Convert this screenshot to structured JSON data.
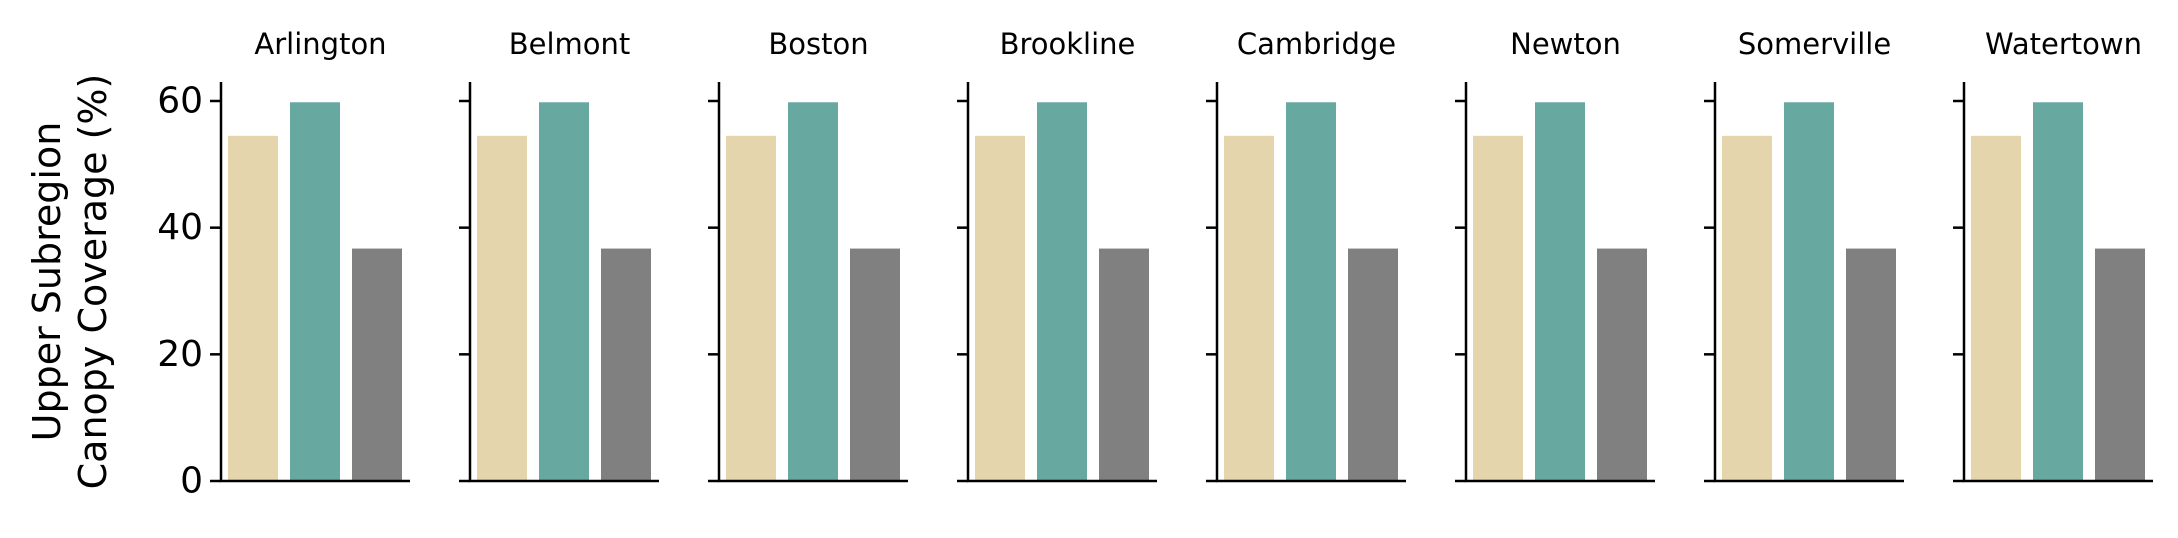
{
  "chart_data": {
    "type": "bar",
    "layout": "small-multiples",
    "ylabel_lines": [
      "Upper Subregion",
      "Canopy Coverage (%)"
    ],
    "ylim": [
      0,
      63
    ],
    "yticks": [
      "0",
      "20",
      "40",
      "60"
    ],
    "grid": false,
    "legend": "none",
    "bar_colors": [
      "#e4d5ac",
      "#67a8a0",
      "#808080"
    ],
    "panels": [
      {
        "title": "Arlington",
        "values": [
          54.5,
          59.8,
          36.7
        ]
      },
      {
        "title": "Belmont",
        "values": [
          54.5,
          59.8,
          36.7
        ]
      },
      {
        "title": "Boston",
        "values": [
          54.5,
          59.8,
          36.7
        ]
      },
      {
        "title": "Brookline",
        "values": [
          54.5,
          59.8,
          36.7
        ]
      },
      {
        "title": "Cambridge",
        "values": [
          54.5,
          59.8,
          36.7
        ]
      },
      {
        "title": "Newton",
        "values": [
          54.5,
          59.8,
          36.7
        ]
      },
      {
        "title": "Somerville",
        "values": [
          54.5,
          59.8,
          36.7
        ]
      },
      {
        "title": "Watertown",
        "values": [
          54.5,
          59.8,
          36.7
        ]
      }
    ]
  }
}
